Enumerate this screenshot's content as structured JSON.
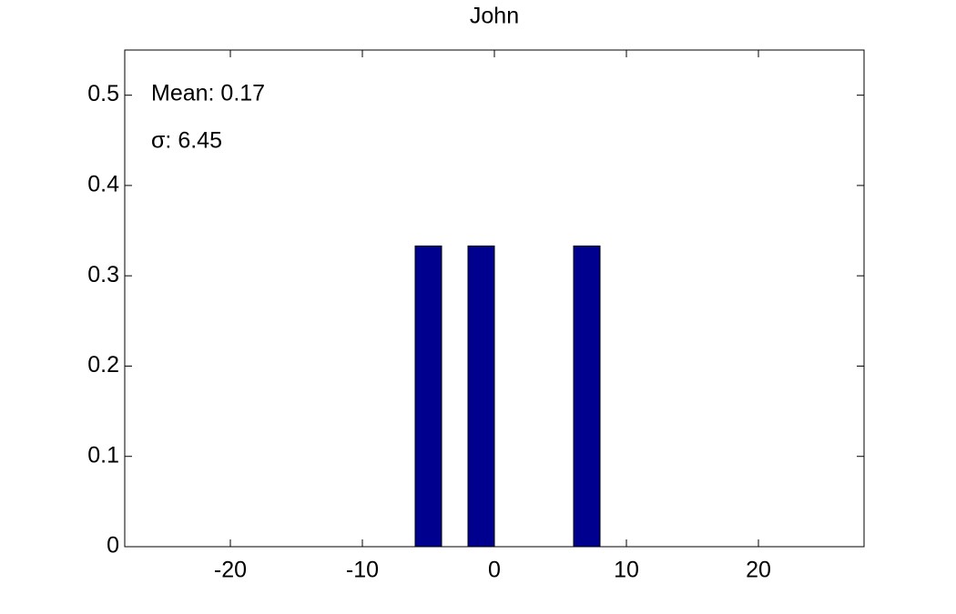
{
  "chart_data": {
    "type": "histogram",
    "title": "John",
    "bins": [
      -6,
      -4,
      -2,
      0,
      2,
      4,
      6,
      8
    ],
    "values": [
      0.333,
      0,
      0.333,
      0,
      0,
      0,
      0.333
    ],
    "color": "#00008f",
    "xlim": [
      -28,
      28
    ],
    "xticks": [
      -20,
      -10,
      0,
      10,
      20
    ],
    "ylim": [
      0,
      0.55
    ],
    "yticks": [
      0,
      0.1,
      0.2,
      0.3,
      0.4,
      0.5
    ],
    "annotations": [
      "Mean: 0.17",
      "σ: 6.45"
    ]
  }
}
